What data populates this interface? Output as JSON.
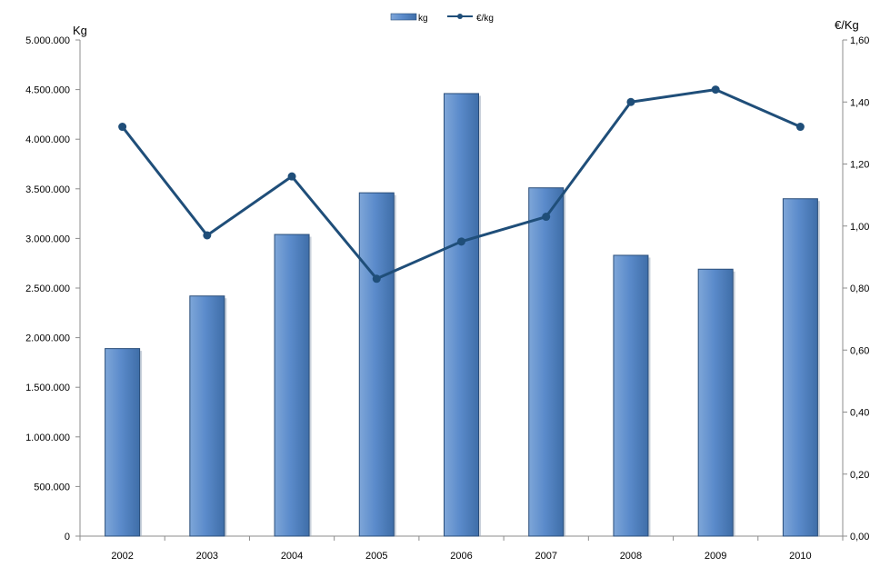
{
  "chart_data": {
    "type": "bar",
    "categories": [
      "2002",
      "2003",
      "2004",
      "2005",
      "2006",
      "2007",
      "2008",
      "2009",
      "2010"
    ],
    "series": [
      {
        "name": "kg",
        "type": "bar",
        "axis": "left",
        "values": [
          1890000,
          2420000,
          3040000,
          3460000,
          4460000,
          3510000,
          2830000,
          2690000,
          3400000
        ]
      },
      {
        "name": "€/kg",
        "type": "line",
        "axis": "right",
        "values": [
          1.32,
          0.97,
          1.16,
          0.83,
          0.95,
          1.03,
          1.4,
          1.44,
          1.32
        ]
      }
    ],
    "ylabel": "Kg",
    "y2label": "€/Kg",
    "ylim": [
      0,
      5000000
    ],
    "y2lim": [
      0,
      1.6
    ],
    "yticks": [
      "0",
      "500.000",
      "1.000.000",
      "1.500.000",
      "2.000.000",
      "2.500.000",
      "3.000.000",
      "3.500.000",
      "4.000.000",
      "4.500.000",
      "5.000.000"
    ],
    "y2ticks": [
      "0,00",
      "0,20",
      "0,40",
      "0,60",
      "0,80",
      "1,00",
      "1,20",
      "1,40",
      "1,60"
    ],
    "grid": false,
    "legend": "top-center",
    "colors": {
      "bar": "#4f81bd",
      "bar_dark": "#2a4e7a",
      "line": "#1f4e79"
    }
  }
}
